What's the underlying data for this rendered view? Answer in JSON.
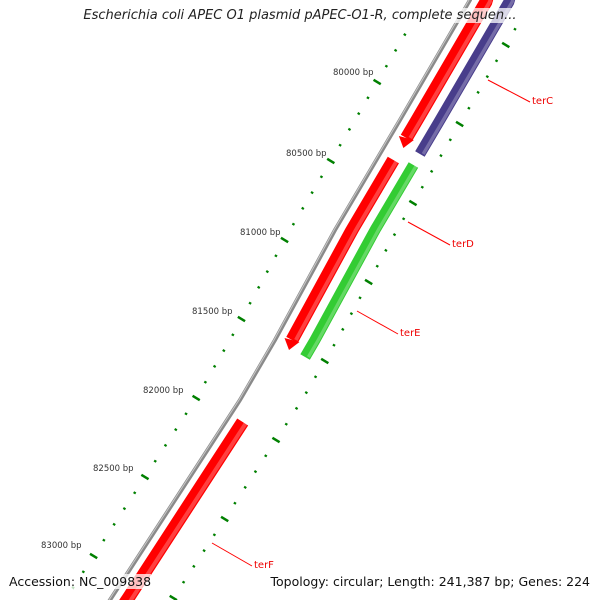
{
  "title": "Escherichia coli APEC O1 plasmid pAPEC-O1-R, complete sequen...",
  "ticks": [
    "80000 bp",
    "80500 bp",
    "81000 bp",
    "81500 bp",
    "82000 bp",
    "82500 bp",
    "83000 bp"
  ],
  "genes": [
    {
      "name": "terC",
      "color": "#ff0000"
    },
    {
      "name": "terD",
      "color": "#33cc33"
    },
    {
      "name": "terE",
      "color": "#ff0000"
    },
    {
      "name": "terF",
      "color": "#ff0000"
    }
  ],
  "colors": {
    "forward": "#ff0000",
    "reverse": "#483d8b",
    "green": "#33cc33",
    "backbone": "#888888",
    "tick": "#008000"
  },
  "footer": {
    "accession": "Accession: NC_009838",
    "summary": "Topology: circular; Length: 241,387 bp; Genes: 224"
  }
}
